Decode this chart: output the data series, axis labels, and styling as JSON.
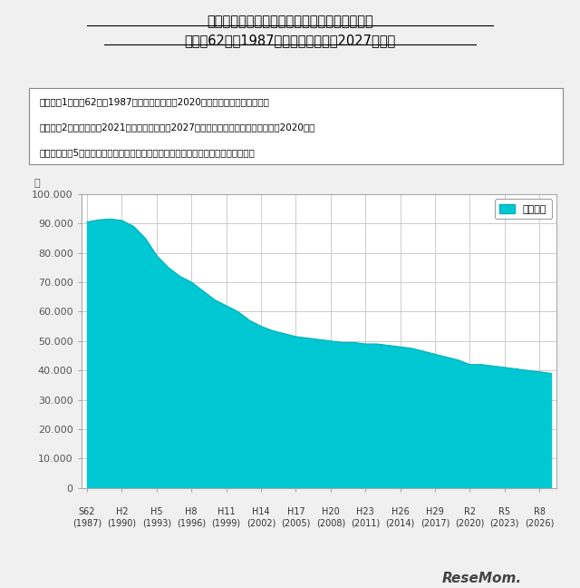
{
  "title_line1": "北海道における中学校卒業（見込）者数の推移",
  "title_line2": "（昭和62年（1987年）～令和９年（2027年））",
  "note_line1": "（注）　1　昭和62年（1987年）～令和２年（2020年）は実卒業者数である．",
  "note_line2": "　　　　2　令和３年（2021年）～令和９年（2027年）は学校基本調査（令和２年（2020年）",
  "note_line3": "　　　　　　5月１日現在）に準じた調査による在籍児童・生徒数を基に推計した。",
  "ylabel": "人",
  "legend_label": "卒業者数",
  "fill_color": "#00C8D2",
  "line_color": "#00B0BC",
  "background_color": "#F0F0F0",
  "plot_bg_color": "#FFFFFF",
  "ylim": [
    0,
    100000
  ],
  "yticks": [
    0,
    10000,
    20000,
    30000,
    40000,
    50000,
    60000,
    70000,
    80000,
    90000,
    100000
  ],
  "x_labels": [
    [
      "S62",
      "(1987)"
    ],
    [
      "H2",
      "(1990)"
    ],
    [
      "H5",
      "(1993)"
    ],
    [
      "H8",
      "(1996)"
    ],
    [
      "H11",
      "(1999)"
    ],
    [
      "H14",
      "(2002)"
    ],
    [
      "H17",
      "(2005)"
    ],
    [
      "H20",
      "(2008)"
    ],
    [
      "H23",
      "(2011)"
    ],
    [
      "H26",
      "(2014)"
    ],
    [
      "H29",
      "(2017)"
    ],
    [
      "R2",
      "(2020)"
    ],
    [
      "R5",
      "(2023)"
    ],
    [
      "R8",
      "(2026)"
    ]
  ],
  "x_tick_years": [
    1987,
    1990,
    1993,
    1996,
    1999,
    2002,
    2005,
    2008,
    2011,
    2014,
    2017,
    2020,
    2023,
    2026
  ],
  "years": [
    1987,
    1988,
    1989,
    1990,
    1991,
    1992,
    1993,
    1994,
    1995,
    1996,
    1997,
    1998,
    1999,
    2000,
    2001,
    2002,
    2003,
    2004,
    2005,
    2006,
    2007,
    2008,
    2009,
    2010,
    2011,
    2012,
    2013,
    2014,
    2015,
    2016,
    2017,
    2018,
    2019,
    2020,
    2021,
    2022,
    2023,
    2024,
    2025,
    2026,
    2027
  ],
  "values": [
    90500,
    91200,
    91500,
    91000,
    89000,
    85000,
    79000,
    75000,
    72000,
    70000,
    67000,
    64000,
    62000,
    60000,
    57000,
    55000,
    53500,
    52500,
    51500,
    51000,
    50500,
    50000,
    49500,
    49500,
    49000,
    49000,
    48500,
    48000,
    47500,
    46500,
    45500,
    44500,
    43500,
    42000,
    42000,
    41500,
    41000,
    40500,
    40000,
    39500,
    39000
  ]
}
